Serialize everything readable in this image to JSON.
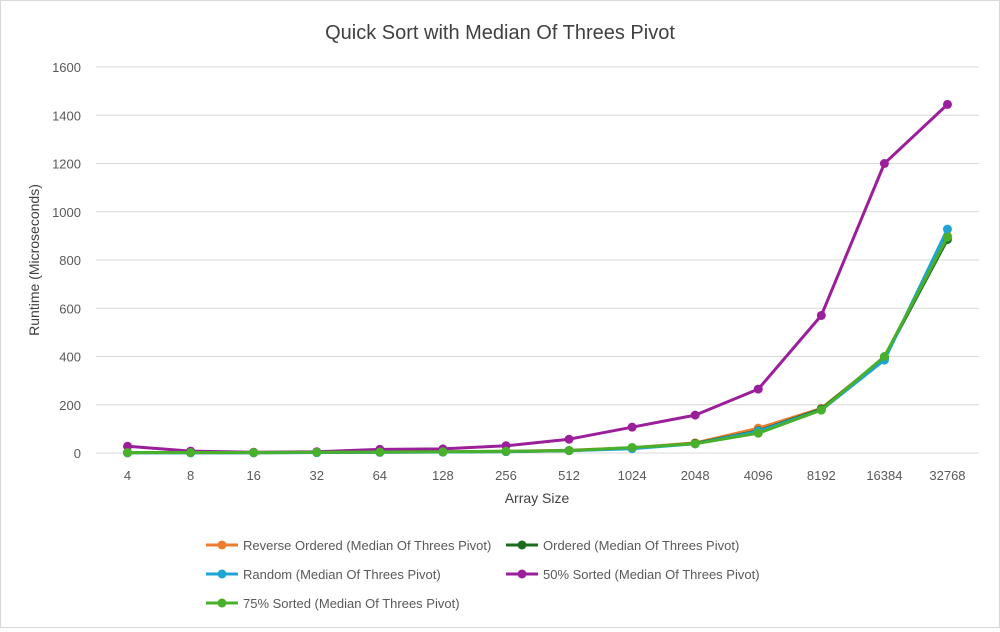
{
  "chart_data": {
    "type": "line",
    "title": "Quick Sort with Median Of Threes Pivot",
    "xlabel": "Array Size",
    "ylabel": "Runtime (Microseconds)",
    "categories": [
      "4",
      "8",
      "16",
      "32",
      "64",
      "128",
      "256",
      "512",
      "1024",
      "2048",
      "4096",
      "8192",
      "16384",
      "32768"
    ],
    "ylim": [
      0,
      1600
    ],
    "yticks": [
      "0",
      "200",
      "400",
      "600",
      "800",
      "1000",
      "1200",
      "1400",
      "1600"
    ],
    "grid": true,
    "legend_position": "bottom",
    "series": [
      {
        "name": "Reverse Ordered (Median Of Threes Pivot)",
        "color": "#ed7d31",
        "values": [
          2,
          2,
          2,
          3,
          4,
          5,
          7,
          11,
          22,
          42,
          103,
          185,
          395,
          900
        ]
      },
      {
        "name": "Ordered (Median Of Threes Pivot)",
        "color": "#1e6b1e",
        "values": [
          1,
          1,
          1,
          2,
          3,
          4,
          6,
          10,
          20,
          40,
          92,
          182,
          395,
          885
        ]
      },
      {
        "name": "Random (Median Of Threes Pivot)",
        "color": "#1ea5d6",
        "values": [
          1,
          1,
          1,
          2,
          3,
          4,
          6,
          10,
          18,
          38,
          90,
          178,
          385,
          928
        ]
      },
      {
        "name": "50% Sorted (Median Of Threes Pivot)",
        "color": "#9b1f9b",
        "values": [
          28,
          8,
          3,
          5,
          15,
          17,
          30,
          57,
          107,
          157,
          265,
          570,
          1200,
          1445
        ]
      },
      {
        "name": "75% Sorted (Median Of Threes Pivot)",
        "color": "#48b02a",
        "values": [
          2,
          2,
          2,
          3,
          4,
          5,
          7,
          10,
          23,
          38,
          82,
          178,
          400,
          895
        ]
      }
    ]
  }
}
